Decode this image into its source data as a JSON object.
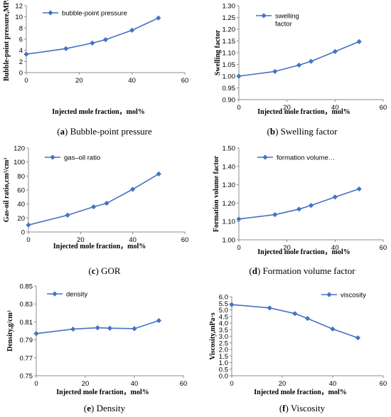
{
  "chart_data": [
    {
      "type": "line",
      "caption": "(a) Bubble-point pressure",
      "x": [
        0,
        15,
        25,
        30,
        40,
        50
      ],
      "series": [
        {
          "name": "bubble-point pressure",
          "values": [
            3.3,
            4.3,
            5.3,
            5.9,
            7.6,
            9.8
          ]
        }
      ],
      "xlabel": "Injected mole fraction，mol%",
      "ylabel": "Bubble-point pressure,MPa",
      "xlim": [
        0,
        60
      ],
      "xticks": [
        0,
        20,
        40,
        60
      ],
      "ylim": [
        0,
        12
      ],
      "yticks": [
        0,
        2,
        4,
        6,
        8,
        10,
        12
      ],
      "ydecimals": 0,
      "grid": false,
      "legend": "top-left",
      "color": "#4472C4"
    },
    {
      "type": "line",
      "caption": "(b) Swelling factor",
      "x": [
        0,
        15,
        25,
        30,
        40,
        50
      ],
      "series": [
        {
          "name": "swelling\nfactor",
          "values": [
            1.0,
            1.02,
            1.047,
            1.063,
            1.105,
            1.147
          ]
        }
      ],
      "xlabel": "Injected mole fraction，mol%",
      "ylabel": "Swelling factor",
      "xlim": [
        0,
        60
      ],
      "xticks": [
        0,
        20,
        40,
        60
      ],
      "ylim": [
        0.9,
        1.3
      ],
      "yticks": [
        0.9,
        0.95,
        1.0,
        1.05,
        1.1,
        1.15,
        1.2,
        1.25,
        1.3
      ],
      "ydecimals": 2,
      "grid": false,
      "legend": "top-center",
      "color": "#4472C4"
    },
    {
      "type": "line",
      "caption": "(c) GOR",
      "x": [
        0,
        15,
        25,
        30,
        40,
        50
      ],
      "series": [
        {
          "name": "gas–oil ratio",
          "values": [
            10,
            24,
            36,
            41,
            61,
            83
          ]
        }
      ],
      "xlabel": "Injected mole fraction，mol%",
      "ylabel": "Gas-oil ratio,cm³/cm³",
      "xlim": [
        0,
        60
      ],
      "xticks": [
        0,
        20,
        40,
        60
      ],
      "ylim": [
        0,
        120
      ],
      "yticks": [
        0,
        20,
        40,
        60,
        80,
        100,
        120
      ],
      "ydecimals": 0,
      "grid": false,
      "legend": "top-left",
      "color": "#4472C4"
    },
    {
      "type": "line",
      "caption": "(d) Formation volume factor",
      "x": [
        0,
        15,
        25,
        30,
        40,
        50
      ],
      "series": [
        {
          "name": "formation volume…",
          "values": [
            1.113,
            1.137,
            1.167,
            1.187,
            1.233,
            1.277
          ]
        }
      ],
      "xlabel": "Injected mole fraction，mol%",
      "ylabel": "Formation volume factor",
      "xlim": [
        0,
        60
      ],
      "xticks": [
        0,
        20,
        40,
        60
      ],
      "ylim": [
        1.0,
        1.5
      ],
      "yticks": [
        1.0,
        1.1,
        1.2,
        1.3,
        1.4,
        1.5
      ],
      "ydecimals": 2,
      "grid": false,
      "legend": "top-center",
      "color": "#4472C4"
    },
    {
      "type": "line",
      "caption": "(e) Density",
      "x": [
        0,
        15,
        25,
        30,
        40,
        50
      ],
      "series": [
        {
          "name": "density",
          "values": [
            0.797,
            0.802,
            0.8035,
            0.803,
            0.8025,
            0.8115
          ]
        }
      ],
      "xlabel": "Injected mole fraction，mol%",
      "ylabel": "Density,g/cm³",
      "xlim": [
        0,
        60
      ],
      "xticks": [
        0,
        20,
        40,
        60
      ],
      "ylim": [
        0.75,
        0.85
      ],
      "yticks": [
        0.75,
        0.77,
        0.79,
        0.81,
        0.83,
        0.85
      ],
      "ydecimals": 2,
      "grid": false,
      "legend": "top-left",
      "color": "#4472C4"
    },
    {
      "type": "line",
      "caption": "(f) Viscosity",
      "x": [
        0,
        15,
        25,
        30,
        40,
        50
      ],
      "series": [
        {
          "name": "viscosity",
          "values": [
            5.4,
            5.15,
            4.72,
            4.35,
            3.55,
            2.88
          ]
        }
      ],
      "xlabel": "Injected mole fraction，mol%",
      "ylabel": "Viscosity,mPa·s",
      "xlim": [
        0,
        60
      ],
      "xticks": [
        0,
        20,
        40,
        60
      ],
      "ylim": [
        0,
        6
      ],
      "yticks": [
        0,
        0.5,
        1,
        1.5,
        2,
        2.5,
        3,
        3.5,
        4,
        4.5,
        5,
        5.5,
        6
      ],
      "ydecimals": 1,
      "grid": false,
      "legend": "top-right",
      "color": "#4472C4"
    }
  ]
}
